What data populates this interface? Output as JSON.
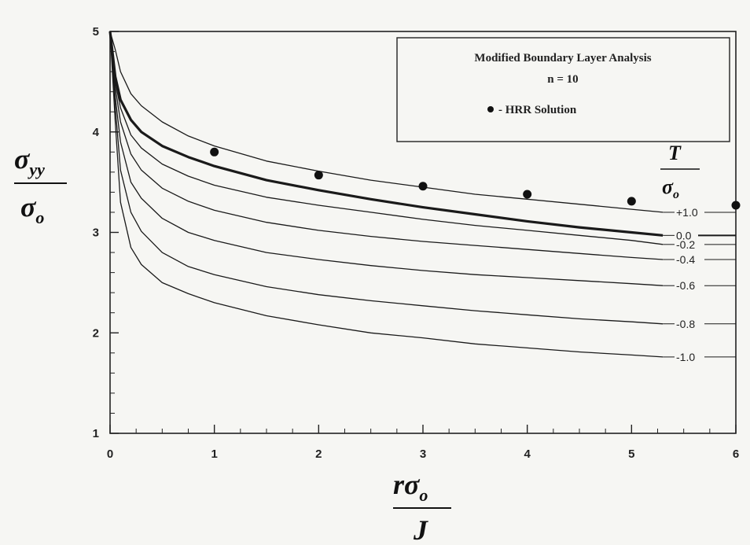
{
  "chart_data": {
    "type": "line",
    "xlim": [
      0,
      6
    ],
    "ylim": [
      1,
      5
    ],
    "x_ticks": [
      "0",
      "1",
      "2",
      "3",
      "4",
      "5",
      "6"
    ],
    "y_ticks": [
      "1",
      "2",
      "3",
      "4",
      "5"
    ],
    "grid": false,
    "legend_position": "top-right",
    "legend": {
      "line1": "Modified Boundary Layer Analysis",
      "line2": "n = 10",
      "marker_label": "- HRR Solution"
    },
    "y_axis_label": {
      "symbol": "σ",
      "subscript": "yy",
      "denominator_symbol": "σ",
      "denominator_subscript": "o"
    },
    "x_axis_label": {
      "r": "r",
      "symbol": "σ",
      "subscript": "o",
      "denominator": "J"
    },
    "t_label": {
      "numerator": "T",
      "denominator_symbol": "σ",
      "denominator_subscript": "o"
    },
    "x": [
      0.05,
      0.1,
      0.2,
      0.3,
      0.5,
      0.75,
      1,
      1.5,
      2,
      2.5,
      3,
      3.5,
      4,
      4.5,
      5,
      5.3
    ],
    "series": [
      {
        "name": "+1.0",
        "bold": false,
        "values": [
          4.82,
          4.6,
          4.38,
          4.26,
          4.1,
          3.96,
          3.86,
          3.71,
          3.61,
          3.52,
          3.45,
          3.38,
          3.33,
          3.28,
          3.23,
          3.2
        ]
      },
      {
        "name": "0.0",
        "bold": true,
        "values": [
          4.55,
          4.32,
          4.12,
          4.0,
          3.86,
          3.75,
          3.66,
          3.52,
          3.42,
          3.33,
          3.25,
          3.18,
          3.11,
          3.05,
          3.0,
          2.97
        ]
      },
      {
        "name": "-0.2",
        "bold": false,
        "values": [
          4.5,
          4.24,
          3.97,
          3.84,
          3.68,
          3.56,
          3.47,
          3.35,
          3.27,
          3.2,
          3.13,
          3.07,
          3.02,
          2.97,
          2.92,
          2.88
        ]
      },
      {
        "name": "-0.4",
        "bold": false,
        "values": [
          4.45,
          4.1,
          3.78,
          3.62,
          3.44,
          3.31,
          3.22,
          3.1,
          3.02,
          2.96,
          2.91,
          2.87,
          2.83,
          2.79,
          2.75,
          2.73
        ]
      },
      {
        "name": "-0.6",
        "bold": false,
        "values": [
          4.35,
          3.9,
          3.5,
          3.34,
          3.14,
          3.0,
          2.92,
          2.8,
          2.73,
          2.67,
          2.62,
          2.58,
          2.55,
          2.52,
          2.49,
          2.47
        ]
      },
      {
        "name": "-0.8",
        "bold": false,
        "values": [
          4.25,
          3.62,
          3.2,
          3.01,
          2.8,
          2.66,
          2.58,
          2.46,
          2.38,
          2.32,
          2.27,
          2.22,
          2.18,
          2.14,
          2.11,
          2.09
        ]
      },
      {
        "name": "-1.0",
        "bold": false,
        "values": [
          4.1,
          3.3,
          2.85,
          2.68,
          2.5,
          2.39,
          2.3,
          2.17,
          2.08,
          2.0,
          1.95,
          1.89,
          1.85,
          1.81,
          1.78,
          1.76
        ]
      }
    ],
    "hrr_points": [
      {
        "x": 1,
        "y": 3.8
      },
      {
        "x": 2,
        "y": 3.57
      },
      {
        "x": 3,
        "y": 3.46
      },
      {
        "x": 4,
        "y": 3.38
      },
      {
        "x": 5,
        "y": 3.31
      },
      {
        "x": 6,
        "y": 3.27
      }
    ]
  }
}
